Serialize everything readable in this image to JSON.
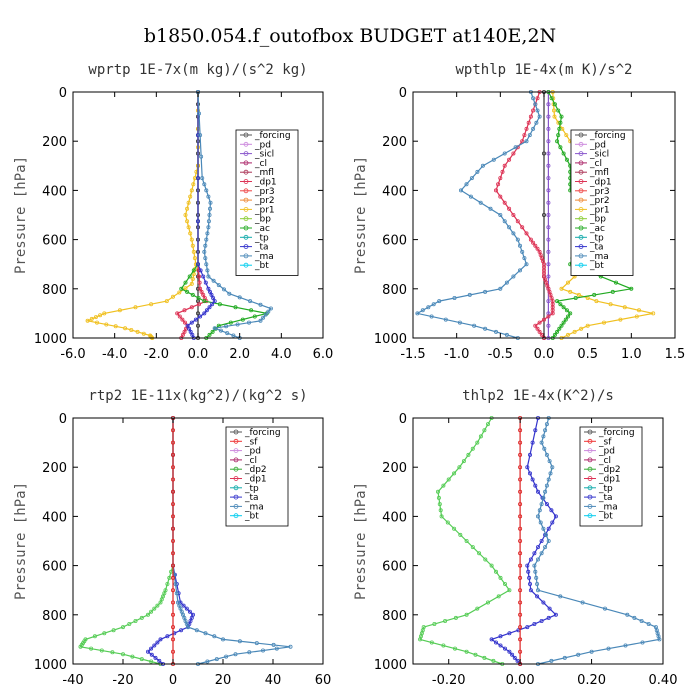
{
  "title": "b1850.054.f_outofbox  BUDGET at140E,2N",
  "chart_data": [
    {
      "type": "line",
      "title": "wprtp  1E-7x(m kg)/(s^2 kg)",
      "ylabel": "Pressure [hPa]",
      "xlim": [
        -6,
        6
      ],
      "ylim": [
        0,
        1000
      ],
      "xticks": [
        "-6.0",
        "-4.0",
        "-2.0",
        "0.0",
        "2.0",
        "4.0",
        "6.0"
      ],
      "yticks": [
        "0",
        "200",
        "400",
        "600",
        "800",
        "1000"
      ],
      "legend": [
        "_forcing",
        "_pd",
        "_sicl",
        "_cl",
        "_mfl",
        "_dp1",
        "_pr3",
        "_pr2",
        "_pr1",
        "_bp",
        "_ac",
        "_tp",
        "_ta",
        "_ma",
        "_bt"
      ],
      "series": [
        {
          "name": "_forcing",
          "color": "#333333",
          "pressure": [
            0,
            200,
            400,
            600,
            800,
            1000
          ],
          "values": [
            0,
            0,
            0,
            0,
            0,
            0
          ]
        },
        {
          "name": "_dp1",
          "color": "#dd3355",
          "pressure": [
            0,
            700,
            800,
            850,
            900,
            950,
            1000
          ],
          "values": [
            0,
            0,
            0.1,
            0.4,
            -1.0,
            -0.5,
            -0.8
          ]
        },
        {
          "name": "_pr1",
          "color": "#f0c020",
          "pressure": [
            0,
            300,
            400,
            500,
            600,
            700,
            780,
            850,
            900,
            930,
            960,
            990,
            1000
          ],
          "values": [
            0,
            0,
            -0.3,
            -0.6,
            -0.3,
            -0.1,
            -0.3,
            -1.5,
            -4.5,
            -5.3,
            -3.5,
            -2.3,
            -2.2
          ]
        },
        {
          "name": "_ac",
          "color": "#22aa22",
          "pressure": [
            0,
            700,
            800,
            850,
            900,
            950,
            1000
          ],
          "values": [
            0,
            0,
            -0.8,
            0.3,
            3.3,
            1.0,
            0.4
          ]
        },
        {
          "name": "_ta",
          "color": "#3333cc",
          "pressure": [
            0,
            700,
            800,
            850,
            900,
            950,
            1000
          ],
          "values": [
            0,
            0,
            0.5,
            0.8,
            0.3,
            -0.5,
            -0.2
          ]
        },
        {
          "name": "_ma",
          "color": "#4a88b8",
          "pressure": [
            0,
            350,
            450,
            550,
            650,
            750,
            820,
            880,
            930,
            960,
            1000
          ],
          "values": [
            0,
            0.2,
            0.6,
            0.5,
            0.3,
            0.5,
            1.5,
            3.5,
            3.0,
            0.8,
            2.0
          ]
        }
      ]
    },
    {
      "type": "line",
      "title": "wpthlp  1E-4x(m K)/s^2",
      "ylabel": "Pressure [hPa]",
      "xlim": [
        -1.5,
        1.5
      ],
      "ylim": [
        0,
        1000
      ],
      "xticks": [
        "-1.5",
        "-1.0",
        "-0.5",
        "0.0",
        "0.5",
        "1.0",
        "1.5"
      ],
      "yticks": [
        "0",
        "200",
        "400",
        "600",
        "800",
        "1000"
      ],
      "legend": [
        "_forcing",
        "_pd",
        "_sicl",
        "_cl",
        "_mfl",
        "_dp1",
        "_pr3",
        "_pr2",
        "_pr1",
        "_bp",
        "_ac",
        "_tp",
        "_ta",
        "_ma",
        "_bt"
      ],
      "series": [
        {
          "name": "_forcing",
          "color": "#333333",
          "pressure": [
            0,
            1000
          ],
          "values": [
            0,
            0
          ]
        },
        {
          "name": "_sicl",
          "color": "#8855cc",
          "pressure": [
            0,
            200,
            400,
            600,
            800,
            1000
          ],
          "values": [
            0.05,
            0.05,
            0.05,
            0.05,
            0.05,
            0.05
          ]
        },
        {
          "name": "_dp1",
          "color": "#dd3355",
          "pressure": [
            0,
            100,
            200,
            300,
            400,
            500,
            600,
            650,
            700,
            750,
            800,
            850,
            900,
            950,
            1000
          ],
          "values": [
            -0.05,
            -0.15,
            -0.25,
            -0.45,
            -0.55,
            -0.35,
            -0.15,
            -0.05,
            0,
            0,
            0.05,
            0.1,
            0.1,
            -0.1,
            0
          ]
        },
        {
          "name": "_pr1",
          "color": "#f0c020",
          "pressure": [
            0,
            100,
            200,
            300,
            400,
            500,
            600,
            700,
            800,
            850,
            900,
            950,
            1000
          ],
          "values": [
            0.1,
            0.12,
            0.3,
            0.5,
            0.7,
            0.8,
            0.7,
            0.5,
            0.2,
            0.6,
            1.25,
            0.5,
            0.2
          ]
        },
        {
          "name": "_ac",
          "color": "#22aa22",
          "pressure": [
            0,
            100,
            200,
            300,
            400,
            500,
            600,
            700,
            800,
            850,
            900,
            950,
            1000
          ],
          "values": [
            0.05,
            0.2,
            0.15,
            0.3,
            0.3,
            0.5,
            0.4,
            0.3,
            1.0,
            0.15,
            0.3,
            0.2,
            0.1
          ]
        },
        {
          "name": "_ma",
          "color": "#4a88b8",
          "pressure": [
            0,
            100,
            200,
            300,
            400,
            500,
            600,
            700,
            800,
            850,
            900,
            950,
            1000
          ],
          "values": [
            -0.15,
            -0.05,
            -0.2,
            -0.7,
            -0.95,
            -0.5,
            -0.3,
            -0.2,
            -0.5,
            -1.2,
            -1.45,
            -0.8,
            -0.3
          ]
        }
      ]
    },
    {
      "type": "line",
      "title": "rtp2  1E-11x(kg^2)/(kg^2 s)",
      "ylabel": "Pressure [hPa]",
      "xlim": [
        -40,
        60
      ],
      "ylim": [
        0,
        1000
      ],
      "xticks": [
        "-40",
        "-20",
        "0",
        "20",
        "40",
        "60"
      ],
      "yticks": [
        "0",
        "200",
        "400",
        "600",
        "800",
        "1000"
      ],
      "legend": [
        "_forcing",
        "_sf",
        "_pd",
        "_cl",
        "_dp2",
        "_dp1",
        "_tp",
        "_ta",
        "_ma",
        "_bt"
      ],
      "series": [
        {
          "name": "_dp1",
          "color": "#55cc55",
          "pressure": [
            0,
            600,
            700,
            750,
            800,
            850,
            900,
            930,
            960,
            1000
          ],
          "values": [
            0,
            0,
            -3,
            -5,
            -10,
            -20,
            -35,
            -37,
            -20,
            -5
          ]
        },
        {
          "name": "_ta",
          "color": "#3333cc",
          "pressure": [
            0,
            600,
            750,
            800,
            850,
            900,
            950,
            1000
          ],
          "values": [
            0,
            0,
            3,
            8,
            6,
            -5,
            -10,
            -4
          ]
        },
        {
          "name": "_ma",
          "color": "#4a88b8",
          "pressure": [
            0,
            600,
            750,
            800,
            850,
            900,
            930,
            960,
            1000
          ],
          "values": [
            0,
            0,
            2,
            4,
            6,
            20,
            47,
            25,
            10
          ]
        },
        {
          "name": "_forcing",
          "color": "#dd2222",
          "pressure": [
            0,
            200,
            400,
            600,
            800,
            1000
          ],
          "values": [
            0,
            0,
            0,
            0,
            0,
            0
          ]
        }
      ]
    },
    {
      "type": "line",
      "title": "thlp2  1E-4x(K^2)/s",
      "ylabel": "Pressure [hPa]",
      "xlim": [
        -0.3,
        0.4
      ],
      "ylim": [
        0,
        1000
      ],
      "xticks": [
        "-0.20",
        "0.00",
        "0.20",
        "0.40"
      ],
      "yticks": [
        "0",
        "200",
        "400",
        "600",
        "800",
        "1000"
      ],
      "legend": [
        "_forcing",
        "_sf",
        "_pd",
        "_cl",
        "_dp2",
        "_dp1",
        "_tp",
        "_ta",
        "_ma",
        "_bt"
      ],
      "series": [
        {
          "name": "_dp1",
          "color": "#55cc55",
          "pressure": [
            0,
            100,
            200,
            300,
            400,
            500,
            600,
            700,
            800,
            850,
            900,
            950,
            1000
          ],
          "values": [
            -0.08,
            -0.12,
            -0.17,
            -0.23,
            -0.22,
            -0.15,
            -0.08,
            -0.03,
            -0.15,
            -0.27,
            -0.28,
            -0.15,
            -0.05
          ]
        },
        {
          "name": "_ta",
          "color": "#3333cc",
          "pressure": [
            0,
            200,
            300,
            400,
            500,
            600,
            700,
            800,
            850,
            900,
            950,
            1000
          ],
          "values": [
            0.05,
            0.02,
            0.05,
            0.1,
            0.06,
            0.02,
            0.03,
            0.1,
            0.02,
            -0.08,
            -0.03,
            0
          ]
        },
        {
          "name": "_ma",
          "color": "#4a88b8",
          "pressure": [
            0,
            100,
            200,
            300,
            400,
            500,
            600,
            700,
            800,
            850,
            900,
            950,
            1000
          ],
          "values": [
            0.08,
            0.06,
            0.09,
            0.07,
            0.05,
            0.08,
            0.04,
            0.05,
            0.3,
            0.38,
            0.39,
            0.2,
            0.05
          ]
        },
        {
          "name": "_forcing",
          "color": "#dd2222",
          "pressure": [
            0,
            200,
            400,
            600,
            800,
            1000
          ],
          "values": [
            0,
            0,
            0,
            0,
            0,
            0
          ]
        }
      ]
    }
  ]
}
